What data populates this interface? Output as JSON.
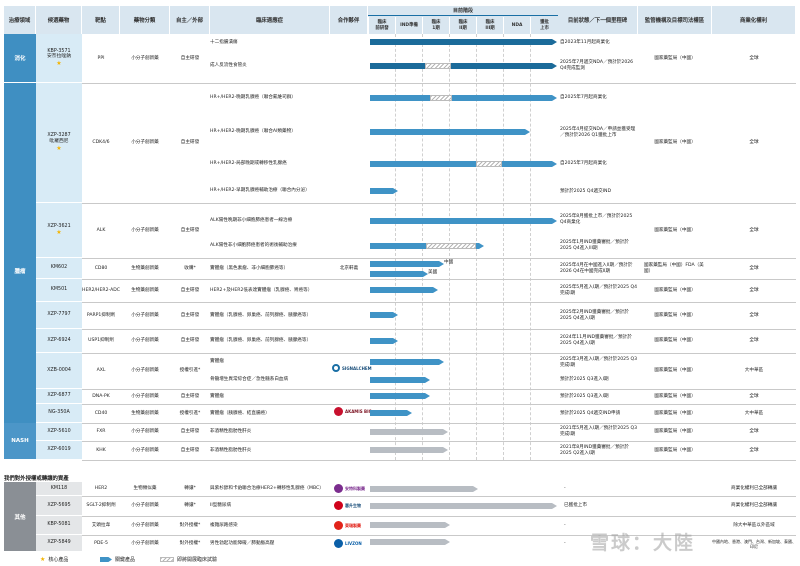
{
  "header": {
    "cols": [
      "治療領域",
      "候選藥物",
      "靶點",
      "藥物分類",
      "自主／外部",
      "臨床適應症",
      "合作夥伴",
      "目前狀態／下一個里程碑",
      "監管機構及目標司法權區",
      "商業化權利"
    ],
    "stage_group": "目前階段",
    "stages": [
      "臨床\n前研發",
      "IND準備",
      "臨床\n1期",
      "臨床\nII期",
      "臨床\nIII期",
      "NDA",
      "獲批\n上市"
    ]
  },
  "segments": [
    "消化",
    "腫瘤",
    "NASH",
    "其他"
  ],
  "drugs": {
    "d1": [
      "KBP-3571",
      "安奈拉唑鈉"
    ],
    "d2": [
      "XZP-3287",
      "吡羅西尼"
    ],
    "d3": [
      "XZP-3621",
      "ALK"
    ],
    "d4": [
      "KM602",
      "CD80",
      "融合蛋白"
    ],
    "d5": [
      "KM501",
      "HER2/HER",
      "2-ADC"
    ],
    "d6": [
      "XZP-7797",
      "PARP1",
      "抑制劑"
    ],
    "d7": [
      "XZP-6924",
      "USP1",
      "抑制劑"
    ],
    "d8": [
      "XZB-0004",
      "AXL"
    ],
    "d9": [
      "XZP-6877",
      "DNA-PK"
    ],
    "d10": [
      "NG-350A",
      "CD40"
    ],
    "d11": [
      "XZP-5610",
      "FXR"
    ],
    "d12": [
      "XZP-6019",
      "KHK"
    ]
  },
  "rows": [
    {
      "target": "PPI",
      "class": "小分子創新藥",
      "source": "自主研發",
      "ind": "十二指腸潰瘍",
      "partner": "",
      "status": "自2023年11月起商業化",
      "reg": "國家藥監局（中國）",
      "rights": "全球"
    },
    {
      "ind": "成人反流性食管炎",
      "status": "2025年7月遞交NDA／預計於2026 Q4完成監測",
      "rights": ""
    },
    {
      "target": "CDK4/6",
      "class": "小分子創新藥",
      "source": "自主研發",
      "ind": "HR+/HER2-晚期乳腺癌（聯合氟維司群）",
      "status": "自2025年7月起商業化"
    },
    {
      "ind": "HR+/HER2-晚期乳腺癌（聯合AI類藥物）",
      "status": "2025年4月提交NDA／申請並獲受理／預計於2026 Q1獲批上市",
      "reg": "國家藥監局（中國）",
      "rights": "全球"
    },
    {
      "ind": "HR+/HER2-局部晚期或轉移性乳腺癌",
      "status": "自2025年7月起商業化"
    },
    {
      "ind": "HR+/HER2-早期乳腺癌輔助治療（聯合內分泌）",
      "status": "預計於2025 Q4遞交IND"
    },
    {
      "target": "ALK",
      "class": "小分子創新藥",
      "source": "自主研發",
      "ind": "ALK陽性晚期非小細胞肺癌患者一線治療",
      "status": "2025年8月獲批上市／預計於2025 Q4商業化"
    },
    {
      "ind": "ALK陽性非小細胞肺癌患者的術後輔助治療",
      "status": "2025年1月IND獲藥審批／預計於2025 Q4進入III期",
      "reg": "國家藥監局（中國）",
      "rights": "全球"
    },
    {
      "target": "CD80",
      "class": "生物藥創新藥",
      "source": "收購*",
      "ind": "實體瘤（黑色素瘤、非小細胞肺癌等）",
      "partner": "北京軒義",
      "status": "2025年4月在中國進入II期／預計於2026 Q4在中國完成II期",
      "reg": "國家藥監局（中國）FDA（美國）",
      "rights": "全球",
      "mark1": "中國",
      "mark2": "美國"
    },
    {
      "target": "HER2/HER2-ADC",
      "class": "生物藥創新藥",
      "source": "自主研發",
      "ind": "HER2+及HER2低表達實體瘤（乳腺癌、胃癌等）",
      "status": "2025年5月進入I期／預計於2025 Q4完成I期",
      "reg": "國家藥監局（中國）",
      "rights": "全球"
    },
    {
      "target": "PARP1抑制劑",
      "class": "小分子創新藥",
      "source": "自主研發",
      "ind": "實體瘤（乳腺癌、卵巢癌、前列腺癌、胰腺癌等）",
      "status": "2025年2月IND獲藥審批／預計於2025 Q4進入I期",
      "reg": "國家藥監局（中國）",
      "rights": "全球"
    },
    {
      "target": "USP1抑制劑",
      "class": "小分子創新藥",
      "source": "自主研發",
      "ind": "實體瘤（乳腺癌、卵巢癌、前列腺癌、胰腺癌等）",
      "status": "2024年11月IND獲藥審批／預計於2025 Q4進入I期",
      "reg": "國家藥監局（中國）",
      "rights": "全球"
    },
    {
      "target": "AXL",
      "class": "小分子創新藥",
      "source": "授權引進*",
      "ind": "實體瘤",
      "partner": "SIGNALCHEM",
      "status": "2025年3月進入I期／預計於2025 Q3完成I期",
      "reg": "國家藥監局（中國）",
      "rights": "大中華區"
    },
    {
      "ind": "骨髓增生異常綜合症／急性髓系白血病",
      "status": "預計於2025 Q3進入I期"
    },
    {
      "target": "DNA-PK",
      "class": "小分子創新藥",
      "source": "自主研發",
      "ind": "實體瘤",
      "status": "預計於2025 Q3進入I期",
      "reg": "國家藥監局（中國）",
      "rights": "全球"
    },
    {
      "target": "CD40",
      "class": "生物藥創新藥",
      "source": "授權引進*",
      "ind": "實體瘤（胰腺癌、結直腸癌）",
      "partner": "AKAMIS BIO",
      "status": "預計於2025 Q4遞交IND申請",
      "reg": "國家藥監局（中國）",
      "rights": "大中華區"
    },
    {
      "target": "FXR",
      "class": "小分子創新藥",
      "source": "自主研發",
      "ind": "非酒精性脂肪性肝炎",
      "status": "2021年5月進入I期／預計於2025 Q3完成I期",
      "reg": "國家藥監局（中國）",
      "rights": "全球"
    },
    {
      "target": "KHK",
      "class": "小分子創新藥",
      "source": "自主研發",
      "ind": "非酒精性脂肪性肝炎",
      "status": "2021年8月IND獲藥審批／預計於2025 Q2進入I期",
      "reg": "國家藥監局（中國）",
      "rights": "全球"
    }
  ],
  "section2_title": "我們對外授權或轉讓的資產",
  "rows2": [
    {
      "drug": [
        "KM118",
        "HER2"
      ],
      "class": "生物類似藥",
      "source": "轉讓*",
      "ind": "與紫杉醇和卡鉑聯合治療HER2+轉移性乳腺癌（MBC）",
      "partner": "安特科製藥",
      "status": "-",
      "reg": "",
      "rights": "商業化權利已全部轉讓"
    },
    {
      "drug": [
        "XZP-5695",
        "SGLT-2抑制劑"
      ],
      "class": "小分子創新藥",
      "source": "轉讓*",
      "ind": "II型糖尿病",
      "partner": "惠升生物",
      "status": "已獲批上市",
      "reg": "",
      "rights": "商業化權利已全部轉讓"
    },
    {
      "drug": [
        "KBP-5081",
        "艾頭拉韋",
        "抗生素"
      ],
      "class": "小分子創新藥",
      "source": "對外授權*",
      "ind": "複雜尿路感染",
      "partner": "東瑞製藥",
      "status": "-",
      "reg": "",
      "rights": "除大中華區以外區域"
    },
    {
      "drug": [
        "XZP-5849",
        "PDE-5"
      ],
      "class": "小分子創新藥",
      "source": "對外授權*",
      "ind": "男性勃起功能障礙／肺動脈高壓",
      "partner": "LIVZON",
      "status": "-",
      "reg": "",
      "rights": "中國內地、香港、澳門、台灣、新加坡、泰國、印尼"
    }
  ],
  "legend": {
    "star": "核心產品",
    "arrow": "關鍵產品",
    "hatch": "即將開展臨床試驗"
  },
  "watermark": "雪球：大陸",
  "colors": {
    "segment": "#3f8fc2",
    "bar_dark": "#1b6b9a",
    "bar_mid": "#3f93c6",
    "bar_grey": "#b8bdc3",
    "header_bg": "#d9e6f0"
  }
}
